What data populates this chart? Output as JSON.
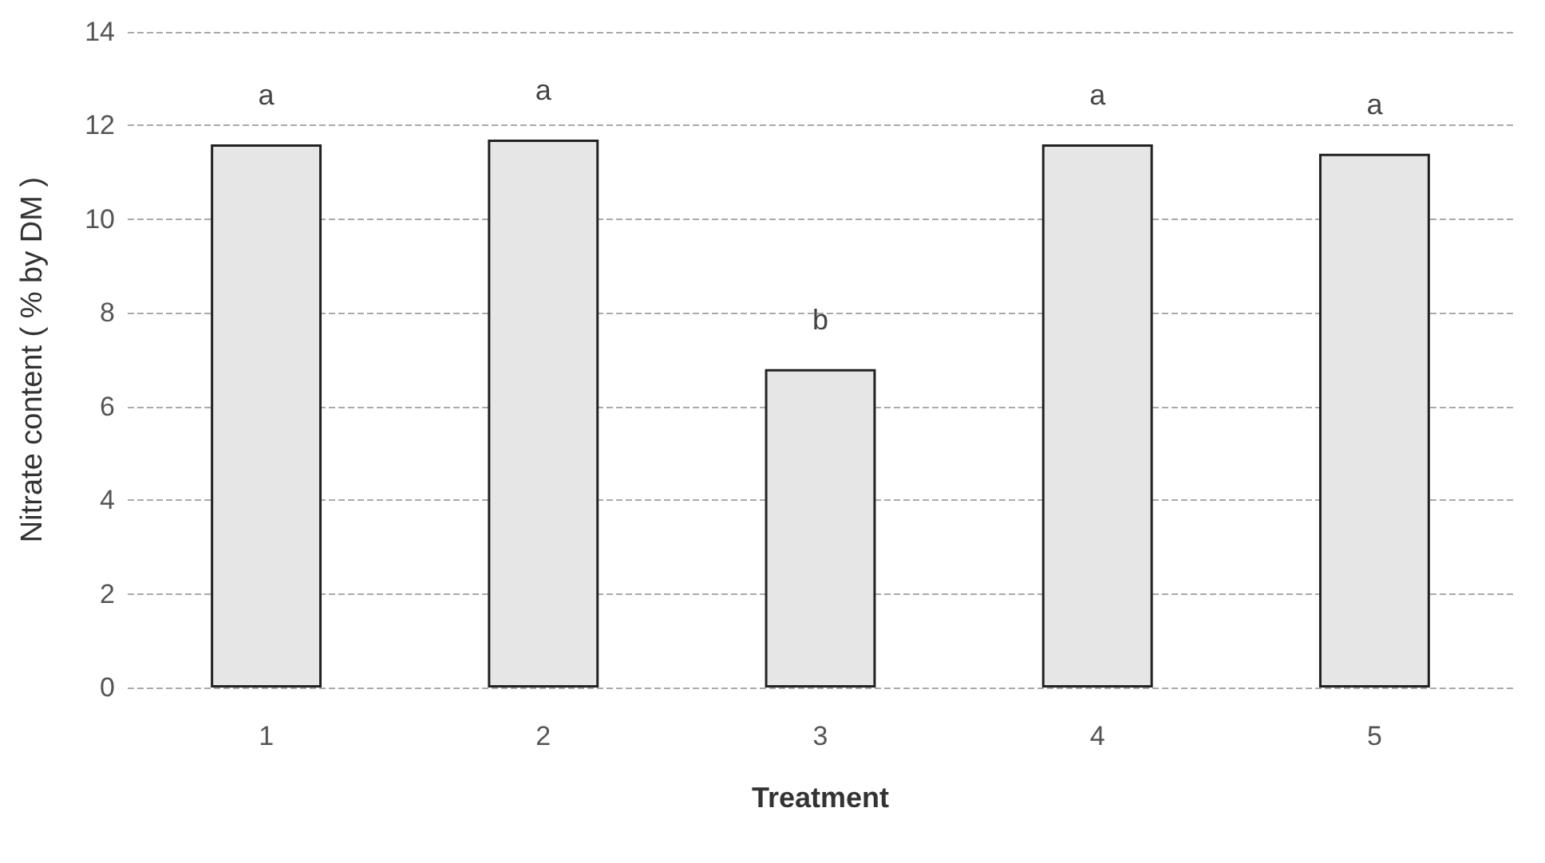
{
  "chart_data": {
    "type": "bar",
    "xlabel": "Treatment",
    "ylabel": "Nitrate content ( % by DM )",
    "categories": [
      "1",
      "2",
      "3",
      "4",
      "5"
    ],
    "values": [
      11.6,
      11.7,
      6.8,
      11.6,
      11.4
    ],
    "color": "#e6e6e6",
    "ylim": [
      0,
      14
    ],
    "yticks": [
      0,
      2,
      4,
      6,
      8,
      10,
      12,
      14
    ],
    "grid": "y",
    "annotations": [
      {
        "text": "a",
        "x": "1",
        "y": 11.6
      },
      {
        "text": "a",
        "x": "2",
        "y": 11.7
      },
      {
        "text": "b",
        "x": "3",
        "y": 6.8
      },
      {
        "text": "a",
        "x": "4",
        "y": 11.6
      },
      {
        "text": "a",
        "x": "5",
        "y": 11.4
      }
    ]
  }
}
